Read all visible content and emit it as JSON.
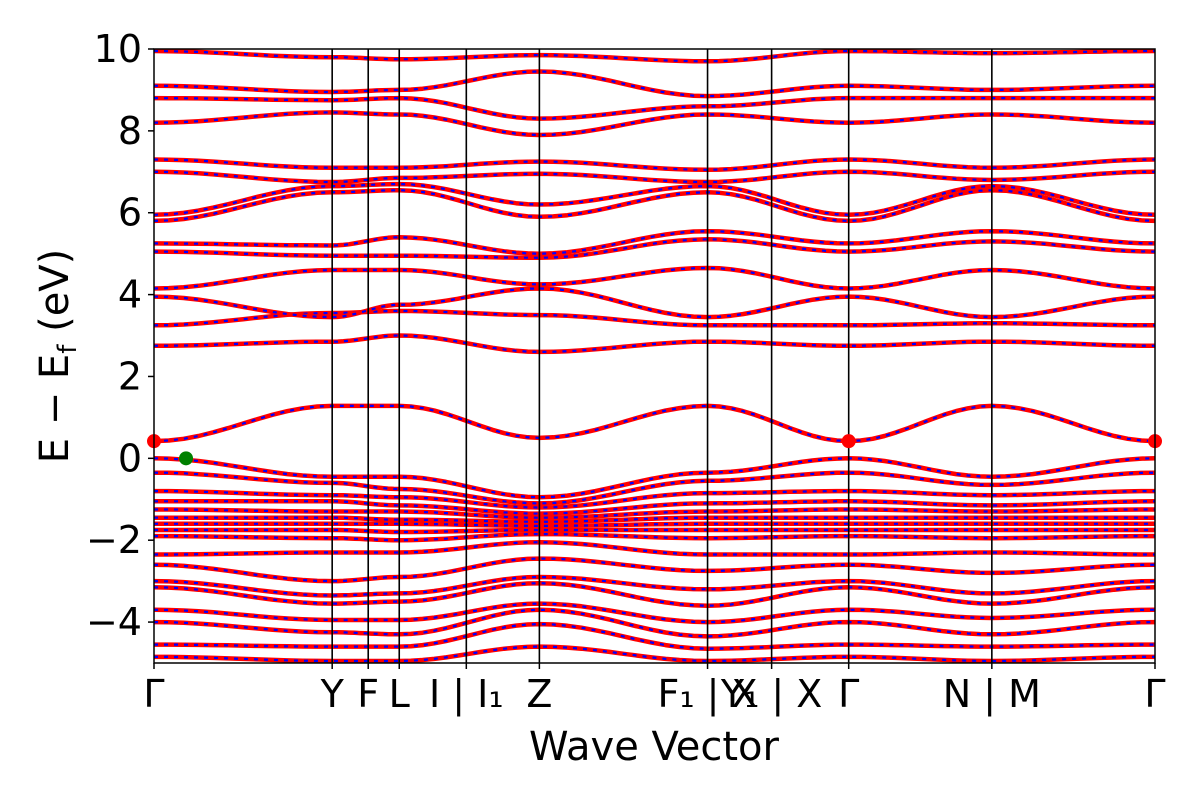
{
  "chart_data": {
    "type": "line",
    "xlabel": "Wave Vector",
    "ylabel_main": "E − E",
    "ylabel_sub": "f",
    "ylabel_unit": " (eV)",
    "ylim": [
      -5,
      10
    ],
    "y_ticks": [
      {
        "value": 10,
        "label": "10"
      },
      {
        "value": 8,
        "label": "8"
      },
      {
        "value": 6,
        "label": "6"
      },
      {
        "value": 4,
        "label": "4"
      },
      {
        "value": 2,
        "label": "2"
      },
      {
        "value": 0,
        "label": "0"
      },
      {
        "value": -2,
        "label": "−2"
      },
      {
        "value": -4,
        "label": "−4"
      }
    ],
    "k_path": [
      {
        "k": 0.0,
        "label": "Γ"
      },
      {
        "k": 0.178,
        "label": "Y"
      },
      {
        "k": 0.214,
        "label": "F"
      },
      {
        "k": 0.245,
        "label": "L"
      },
      {
        "k": 0.312,
        "label": "I | I₁"
      },
      {
        "k": 0.385,
        "label": "Z"
      },
      {
        "k": 0.553,
        "label": "F₁ | X"
      },
      {
        "k": 0.617,
        "label": "Y₁ | X"
      },
      {
        "k": 0.694,
        "label": "Γ"
      },
      {
        "k": 0.837,
        "label": "N | M"
      },
      {
        "k": 1.0,
        "label": "Γ"
      }
    ],
    "series": [
      {
        "color": "#ff0000",
        "style": "solid"
      },
      {
        "color": "#0000ff",
        "style": "dashed"
      }
    ],
    "points": [
      {
        "k": 0.0,
        "energy": 0.42,
        "color": "#ff0000"
      },
      {
        "k": 0.694,
        "energy": 0.42,
        "color": "#ff0000"
      },
      {
        "k": 1.0,
        "energy": 0.42,
        "color": "#ff0000"
      },
      {
        "k": 0.032,
        "energy": 0.0,
        "color": "#008000"
      }
    ],
    "bands": [
      {
        "k": [
          0.0,
          0.178,
          0.245,
          0.385,
          0.553,
          0.694,
          0.837,
          1.0
        ],
        "e": [
          0.42,
          1.28,
          1.28,
          0.5,
          1.28,
          0.42,
          1.28,
          0.42
        ]
      },
      {
        "k": [
          0.0,
          0.178,
          0.245,
          0.385,
          0.553,
          0.694,
          0.837,
          1.0
        ],
        "e": [
          2.75,
          2.85,
          3.0,
          2.6,
          2.85,
          2.75,
          2.85,
          2.75
        ]
      },
      {
        "k": [
          0.0,
          0.178,
          0.245,
          0.385,
          0.553,
          0.694,
          0.837,
          1.0
        ],
        "e": [
          3.25,
          3.55,
          3.6,
          3.5,
          3.25,
          3.25,
          3.3,
          3.25
        ]
      },
      {
        "k": [
          0.0,
          0.178,
          0.245,
          0.385,
          0.553,
          0.694,
          0.837,
          1.0
        ],
        "e": [
          3.95,
          3.45,
          3.75,
          4.15,
          3.45,
          3.95,
          3.45,
          3.95
        ]
      },
      {
        "k": [
          0.0,
          0.178,
          0.245,
          0.385,
          0.553,
          0.694,
          0.837,
          1.0
        ],
        "e": [
          4.15,
          4.6,
          4.6,
          4.25,
          4.65,
          4.15,
          4.6,
          4.15
        ]
      },
      {
        "k": [
          0.0,
          0.178,
          0.245,
          0.385,
          0.553,
          0.694,
          0.837,
          1.0
        ],
        "e": [
          5.05,
          4.95,
          4.95,
          4.9,
          5.35,
          5.05,
          5.3,
          5.05
        ]
      },
      {
        "k": [
          0.0,
          0.178,
          0.245,
          0.385,
          0.553,
          0.694,
          0.837,
          1.0
        ],
        "e": [
          5.25,
          5.2,
          5.4,
          5.0,
          5.55,
          5.25,
          5.55,
          5.25
        ]
      },
      {
        "k": [
          0.0,
          0.178,
          0.245,
          0.385,
          0.553,
          0.694,
          0.837,
          1.0
        ],
        "e": [
          5.8,
          6.5,
          6.55,
          5.9,
          6.5,
          5.8,
          6.55,
          5.8
        ]
      },
      {
        "k": [
          0.0,
          0.178,
          0.245,
          0.385,
          0.553,
          0.694,
          0.837,
          1.0
        ],
        "e": [
          5.95,
          6.65,
          6.7,
          6.2,
          6.65,
          5.95,
          6.65,
          5.95
        ]
      },
      {
        "k": [
          0.0,
          0.178,
          0.245,
          0.385,
          0.553,
          0.694,
          0.837,
          1.0
        ],
        "e": [
          7.0,
          6.75,
          6.85,
          6.95,
          6.75,
          7.0,
          6.8,
          7.0
        ]
      },
      {
        "k": [
          0.0,
          0.178,
          0.245,
          0.385,
          0.553,
          0.694,
          0.837,
          1.0
        ],
        "e": [
          7.3,
          7.1,
          7.1,
          7.25,
          7.05,
          7.3,
          7.1,
          7.3
        ]
      },
      {
        "k": [
          0.0,
          0.178,
          0.245,
          0.385,
          0.553,
          0.694,
          0.837,
          1.0
        ],
        "e": [
          8.2,
          8.45,
          8.4,
          7.9,
          8.4,
          8.2,
          8.4,
          8.2
        ]
      },
      {
        "k": [
          0.0,
          0.178,
          0.245,
          0.385,
          0.553,
          0.694,
          0.837,
          1.0
        ],
        "e": [
          8.8,
          8.75,
          8.8,
          8.3,
          8.6,
          8.8,
          8.8,
          8.8
        ]
      },
      {
        "k": [
          0.0,
          0.178,
          0.245,
          0.385,
          0.553,
          0.694,
          0.837,
          1.0
        ],
        "e": [
          9.1,
          8.95,
          9.0,
          9.45,
          8.85,
          9.1,
          9.0,
          9.1
        ]
      },
      {
        "k": [
          0.0,
          0.178,
          0.245,
          0.385,
          0.553,
          0.694,
          0.837,
          1.0
        ],
        "e": [
          9.95,
          9.8,
          9.75,
          9.85,
          9.7,
          9.95,
          9.9,
          9.95
        ]
      },
      {
        "k": [
          0.0,
          0.178,
          0.245,
          0.385,
          0.553,
          0.694,
          0.837,
          1.0
        ],
        "e": [
          0.0,
          -0.45,
          -0.45,
          -0.95,
          -0.35,
          0.0,
          -0.45,
          0.0
        ]
      },
      {
        "k": [
          0.0,
          0.178,
          0.245,
          0.385,
          0.553,
          0.694,
          0.837,
          1.0
        ],
        "e": [
          -0.35,
          -0.6,
          -0.75,
          -1.1,
          -0.55,
          -0.35,
          -0.65,
          -0.35
        ]
      },
      {
        "k": [
          0.0,
          0.178,
          0.245,
          0.385,
          0.553,
          0.694,
          0.837,
          1.0
        ],
        "e": [
          -0.8,
          -0.9,
          -0.95,
          -1.2,
          -0.85,
          -0.8,
          -0.9,
          -0.8
        ]
      },
      {
        "k": [
          0.0,
          0.178,
          0.245,
          0.385,
          0.553,
          0.694,
          0.837,
          1.0
        ],
        "e": [
          -1.05,
          -1.05,
          -1.15,
          -1.35,
          -1.1,
          -1.05,
          -1.15,
          -1.05
        ]
      },
      {
        "k": [
          0.0,
          0.178,
          0.245,
          0.385,
          0.553,
          0.694,
          0.837,
          1.0
        ],
        "e": [
          -1.25,
          -1.3,
          -1.3,
          -1.45,
          -1.3,
          -1.25,
          -1.3,
          -1.25
        ]
      },
      {
        "k": [
          0.0,
          0.178,
          0.245,
          0.385,
          0.553,
          0.694,
          0.837,
          1.0
        ],
        "e": [
          -1.45,
          -1.45,
          -1.5,
          -1.55,
          -1.45,
          -1.45,
          -1.45,
          -1.45
        ]
      },
      {
        "k": [
          0.0,
          0.178,
          0.245,
          0.385,
          0.553,
          0.694,
          0.837,
          1.0
        ],
        "e": [
          -1.6,
          -1.6,
          -1.6,
          -1.65,
          -1.6,
          -1.6,
          -1.6,
          -1.6
        ]
      },
      {
        "k": [
          0.0,
          0.178,
          0.245,
          0.385,
          0.553,
          0.694,
          0.837,
          1.0
        ],
        "e": [
          -1.75,
          -1.75,
          -1.8,
          -1.75,
          -1.75,
          -1.75,
          -1.75,
          -1.75
        ]
      },
      {
        "k": [
          0.0,
          0.178,
          0.245,
          0.385,
          0.553,
          0.694,
          0.837,
          1.0
        ],
        "e": [
          -1.9,
          -1.95,
          -2.0,
          -1.85,
          -1.95,
          -1.9,
          -1.95,
          -1.9
        ]
      },
      {
        "k": [
          0.0,
          0.178,
          0.245,
          0.385,
          0.553,
          0.694,
          0.837,
          1.0
        ],
        "e": [
          -2.35,
          -2.3,
          -2.3,
          -2.05,
          -2.35,
          -2.35,
          -2.3,
          -2.35
        ]
      },
      {
        "k": [
          0.0,
          0.178,
          0.245,
          0.385,
          0.553,
          0.694,
          0.837,
          1.0
        ],
        "e": [
          -2.6,
          -3.0,
          -2.9,
          -2.45,
          -2.75,
          -2.6,
          -2.8,
          -2.6
        ]
      },
      {
        "k": [
          0.0,
          0.178,
          0.245,
          0.385,
          0.553,
          0.694,
          0.837,
          1.0
        ],
        "e": [
          -3.0,
          -3.35,
          -3.3,
          -2.9,
          -3.2,
          -3.0,
          -3.3,
          -3.0
        ]
      },
      {
        "k": [
          0.0,
          0.178,
          0.245,
          0.385,
          0.553,
          0.694,
          0.837,
          1.0
        ],
        "e": [
          -3.15,
          -3.55,
          -3.5,
          -3.05,
          -3.6,
          -3.15,
          -3.55,
          -3.15
        ]
      },
      {
        "k": [
          0.0,
          0.178,
          0.245,
          0.385,
          0.553,
          0.694,
          0.837,
          1.0
        ],
        "e": [
          -3.7,
          -3.95,
          -3.95,
          -3.55,
          -4.0,
          -3.7,
          -3.9,
          -3.7
        ]
      },
      {
        "k": [
          0.0,
          0.178,
          0.245,
          0.385,
          0.553,
          0.694,
          0.837,
          1.0
        ],
        "e": [
          -4.0,
          -4.25,
          -4.3,
          -3.7,
          -4.35,
          -4.0,
          -4.3,
          -4.0
        ]
      },
      {
        "k": [
          0.0,
          0.178,
          0.245,
          0.385,
          0.553,
          0.694,
          0.837,
          1.0
        ],
        "e": [
          -4.55,
          -4.6,
          -4.6,
          -4.05,
          -4.65,
          -4.55,
          -4.6,
          -4.55
        ]
      },
      {
        "k": [
          0.0,
          0.178,
          0.245,
          0.385,
          0.553,
          0.694,
          0.837,
          1.0
        ],
        "e": [
          -4.85,
          -4.95,
          -4.95,
          -4.6,
          -4.95,
          -4.85,
          -4.95,
          -4.85
        ]
      }
    ]
  }
}
